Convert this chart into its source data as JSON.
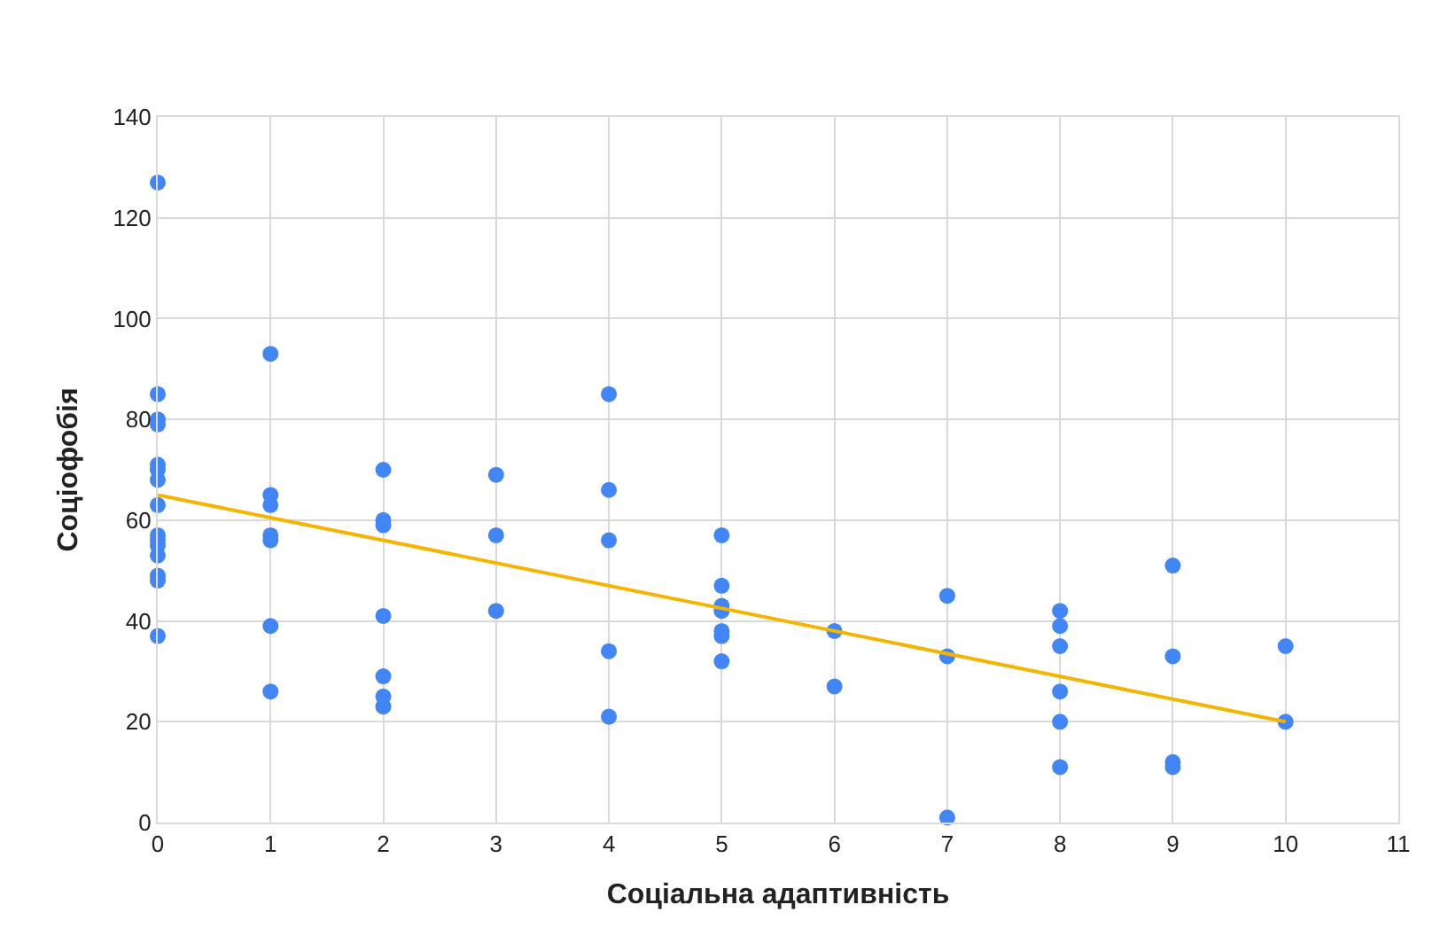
{
  "chart_data": {
    "type": "scatter",
    "xlabel": "Соціальна адаптивність",
    "ylabel": "Соціофобія",
    "xlim": [
      0,
      11
    ],
    "xticks": [
      0,
      1,
      2,
      3,
      4,
      5,
      6,
      7,
      8,
      9,
      10,
      11
    ],
    "ylim": [
      0,
      140
    ],
    "yticks": [
      0,
      20,
      40,
      60,
      80,
      100,
      120,
      140
    ],
    "grid": true,
    "legend": false,
    "series": [
      {
        "color": "#4285f4",
        "marker": "circle",
        "x": [
          0,
          0,
          0,
          0,
          0,
          0,
          0,
          0,
          0,
          0,
          0,
          0,
          0,
          0,
          0,
          1,
          1,
          1,
          1,
          1,
          1,
          1,
          2,
          2,
          2,
          2,
          2,
          2,
          2,
          3,
          3,
          3,
          4,
          4,
          4,
          4,
          4,
          5,
          5,
          5,
          5,
          5,
          5,
          5,
          6,
          6,
          7,
          7,
          7,
          8,
          8,
          8,
          8,
          8,
          8,
          9,
          9,
          9,
          9,
          10,
          10
        ],
        "values": [
          127,
          85,
          80,
          79,
          71,
          70,
          68,
          63,
          57,
          56,
          55,
          53,
          49,
          48,
          37,
          93,
          65,
          63,
          57,
          56,
          39,
          26,
          70,
          60,
          59,
          41,
          29,
          25,
          23,
          69,
          57,
          42,
          85,
          66,
          56,
          34,
          21,
          57,
          47,
          43,
          42,
          38,
          37,
          32,
          38,
          27,
          45,
          33,
          1,
          42,
          39,
          35,
          26,
          20,
          11,
          51,
          33,
          12,
          11,
          35,
          20
        ]
      },
      {
        "type": "line",
        "marker": "none",
        "color": "#f4b400",
        "x": [
          0,
          10
        ],
        "values": [
          65,
          20
        ]
      }
    ]
  }
}
